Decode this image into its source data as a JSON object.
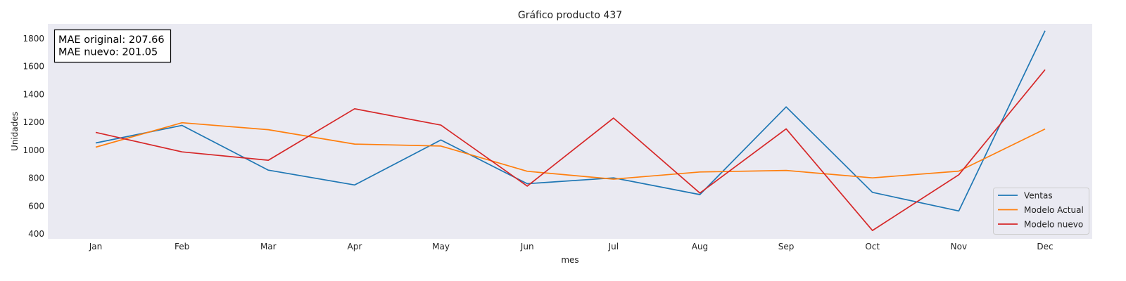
{
  "chart_data": {
    "type": "line",
    "title": "Gráfico producto 437",
    "xlabel": "mes",
    "ylabel": "Unidades",
    "categories": [
      "Jan",
      "Feb",
      "Mar",
      "Apr",
      "May",
      "Jun",
      "Jul",
      "Aug",
      "Sep",
      "Oct",
      "Nov",
      "Dec"
    ],
    "yticks": [
      400,
      600,
      800,
      1000,
      1200,
      1400,
      1600,
      1800
    ],
    "ylim": [
      365,
      1905
    ],
    "grid": false,
    "legend_position": "bottom-right",
    "series": [
      {
        "name": "Ventas",
        "color": "#1f77b4",
        "values": [
          1052,
          1178,
          857,
          751,
          1073,
          760,
          802,
          682,
          1310,
          698,
          565,
          1856
        ]
      },
      {
        "name": "Modelo Actual",
        "color": "#ff7f0e",
        "values": [
          1022,
          1197,
          1147,
          1044,
          1030,
          849,
          793,
          844,
          855,
          802,
          850,
          1152
        ]
      },
      {
        "name": "Modelo nuevo",
        "color": "#d62728",
        "values": [
          1128,
          988,
          928,
          1297,
          1180,
          743,
          1230,
          693,
          1153,
          425,
          824,
          1577
        ]
      }
    ],
    "annotation": {
      "line1": "MAE original: 207.66",
      "line2": "MAE nuevo: 201.05"
    }
  }
}
